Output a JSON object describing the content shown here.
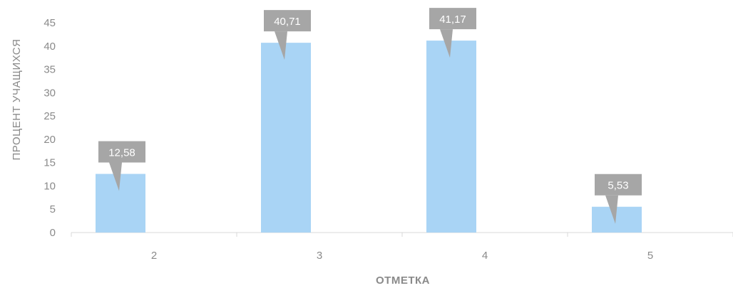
{
  "chart_data": {
    "type": "bar",
    "categories": [
      "2",
      "3",
      "4",
      "5"
    ],
    "values": [
      12.58,
      40.71,
      41.17,
      5.53
    ],
    "data_labels": [
      "12,58",
      "40,71",
      "41,17",
      "5,53"
    ],
    "xlabel": "ОТМЕТКА",
    "ylabel": "ПРОЦЕНТ УЧАЩИХСЯ",
    "ylim": [
      0,
      45
    ],
    "yticks": [
      "0",
      "5",
      "10",
      "15",
      "20",
      "25",
      "30",
      "35",
      "40",
      "45"
    ],
    "grid": false,
    "legend": "none",
    "colors": {
      "bar": "#a9d4f5",
      "label_box": "#a6a6a6",
      "axis": "#d9d9d9",
      "text": "#8a8a8a"
    }
  }
}
